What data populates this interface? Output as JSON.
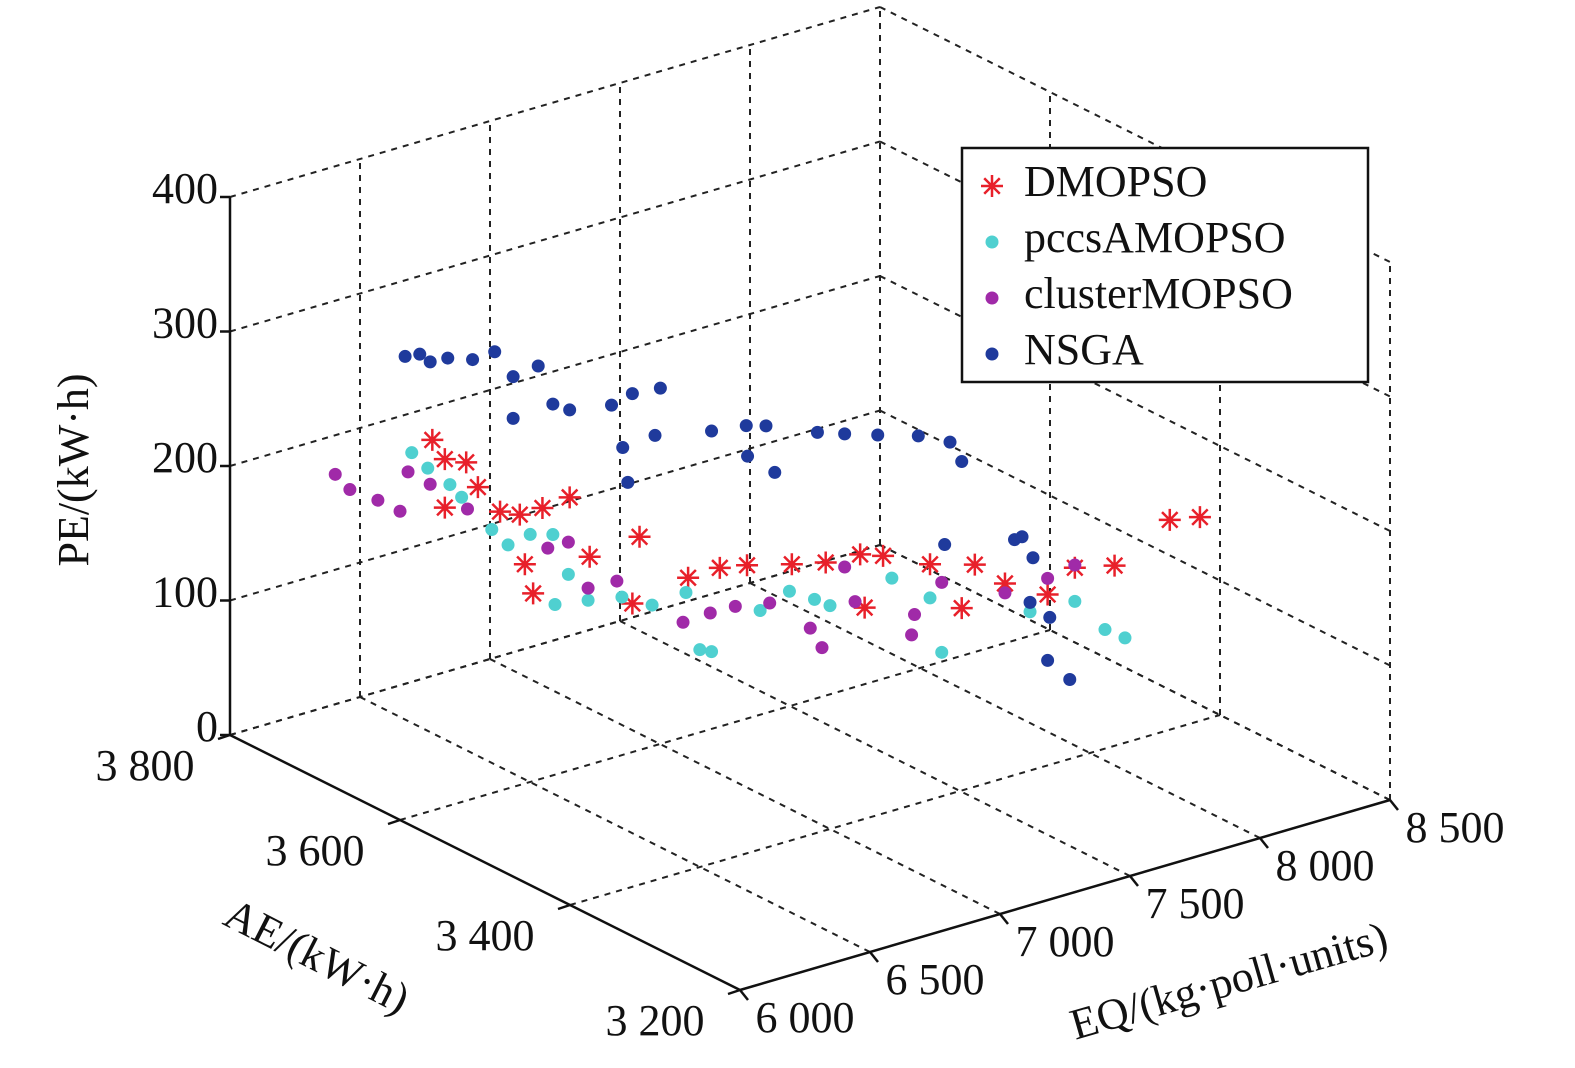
{
  "chart_data": {
    "type": "scatter3d",
    "xlabel": "EQ/(kg·poll·units)",
    "ylabel": "AE/(kW·h)",
    "zlabel": "PE/(kW·h)",
    "xlim": [
      6000,
      8500
    ],
    "ylim": [
      3200,
      3800
    ],
    "zlim": [
      0,
      400
    ],
    "xticks": [
      {
        "value": 6000,
        "label": "6 000"
      },
      {
        "value": 6500,
        "label": "6 500"
      },
      {
        "value": 7000,
        "label": "7 000"
      },
      {
        "value": 7500,
        "label": "7 500"
      },
      {
        "value": 8000,
        "label": "8 000"
      },
      {
        "value": 8500,
        "label": "8 500"
      }
    ],
    "yticks": [
      {
        "value": 3200,
        "label": "3 200"
      },
      {
        "value": 3400,
        "label": "3 400"
      },
      {
        "value": 3600,
        "label": "3 600"
      },
      {
        "value": 3800,
        "label": "3 800"
      }
    ],
    "zticks": [
      0,
      100,
      200,
      300,
      400
    ],
    "grid": true,
    "legend": "upper right",
    "series": [
      {
        "name": "DMOPSO",
        "color": "#e8202a",
        "marker": "star",
        "x": [
          6363,
          6398,
          6454,
          6398,
          6486,
          6545,
          6598,
          6659,
          6731,
          6611,
          6633,
          6785,
          6918,
          6897,
          7046,
          7132,
          7204,
          7324,
          7415,
          7505,
          7567,
          7692,
          7812,
          7778,
          7892,
          8007,
          8079,
          8186,
          8333,
          8413,
          7519
        ],
        "y": [
          3673,
          3669,
          3661,
          3669,
          3657,
          3649,
          3642,
          3634,
          3624,
          3640,
          3637,
          3617,
          3599,
          3601,
          3581,
          3570,
          3560,
          3544,
          3532,
          3519,
          3511,
          3494,
          3478,
          3483,
          3467,
          3452,
          3442,
          3428,
          3408,
          3397,
          3518
        ],
        "z": [
          239,
          224,
          221,
          188,
          202,
          183,
          180,
          184,
          191,
          143,
          121,
          146,
          159,
          110,
          127,
          133,
          134,
          133,
          133,
          138,
          136,
          128,
          126,
          94,
          111,
          101,
          120,
          120,
          152,
          153,
          98
        ]
      },
      {
        "name": "pccsAMOPSO",
        "color": "#4fd0d0",
        "marker": "dot",
        "x": [
          6310,
          6352,
          6411,
          6443,
          6523,
          6566,
          6625,
          6686,
          6726,
          6691,
          6779,
          6870,
          6950,
          7041,
          7078,
          7110,
          7238,
          7318,
          7385,
          7425,
          7591,
          7692,
          7724,
          7959,
          8079,
          8159,
          8213
        ],
        "y": [
          3681,
          3675,
          3667,
          3663,
          3652,
          3646,
          3638,
          3630,
          3624,
          3629,
          3617,
          3605,
          3594,
          3582,
          3577,
          3573,
          3555,
          3545,
          3536,
          3530,
          3508,
          3494,
          3490,
          3458,
          3442,
          3431,
          3424
        ],
        "z": [
          230,
          218,
          205,
          195,
          170,
          158,
          165,
          164,
          134,
          112,
          114,
          115,
          108,
          116,
          73,
          71,
          100,
          113,
          106,
          101,
          119,
          103,
          62,
          89,
          95,
          73,
          66
        ]
      },
      {
        "name": "clusterMOPSO",
        "color": "#a02aa8",
        "marker": "dot",
        "x": [
          6104,
          6144,
          6219,
          6278,
          6299,
          6358,
          6459,
          6673,
          6726,
          6779,
          6857,
          7033,
          7105,
          7172,
          7265,
          7372,
          7404,
          7465,
          7492,
          7644,
          7652,
          7724,
          7892,
          8007,
          8079
        ],
        "y": [
          3708,
          3703,
          3693,
          3685,
          3682,
          3674,
          3661,
          3632,
          3624,
          3617,
          3607,
          3583,
          3573,
          3564,
          3552,
          3537,
          3533,
          3525,
          3521,
          3501,
          3500,
          3490,
          3467,
          3452,
          3442
        ],
        "z": [
          217,
          205,
          196,
          187,
          216,
          206,
          186,
          154,
          158,
          123,
          127,
          94,
          100,
          104,
          105,
          85,
          70,
          129,
          103,
          76,
          91,
          114,
          104,
          113,
          122
        ]
      },
      {
        "name": "NSGA",
        "color": "#1f3a9c",
        "marker": "dot",
        "x": [
          6291,
          6331,
          6358,
          6406,
          6472,
          6531,
          6579,
          6646,
          6579,
          6686,
          6731,
          6843,
          6897,
          6972,
          6873,
          6886,
          6958,
          7110,
          7201,
          7254,
          7206,
          7278,
          7393,
          7465,
          7553,
          7660,
          7746,
          7778,
          7732,
          7919,
          7938,
          7967,
          7959,
          8012,
          8007,
          8066
        ],
        "y": [
          3683,
          3678,
          3674,
          3668,
          3659,
          3651,
          3644,
          3635,
          3644,
          3630,
          3624,
          3609,
          3601,
          3591,
          3605,
          3603,
          3593,
          3573,
          3560,
          3553,
          3560,
          3550,
          3535,
          3525,
          3513,
          3498,
          3487,
          3483,
          3489,
          3464,
          3461,
          3457,
          3458,
          3451,
          3452,
          3444
        ],
        "z": [
          302,
          303,
          297,
          299,
          297,
          302,
          283,
          290,
          252,
          261,
          256,
          258,
          266,
          269,
          226,
          200,
          234,
          235,
          238,
          237,
          215,
          202,
          230,
          228,
          226,
          224,
          218,
          203,
          142,
          143,
          145,
          129,
          96,
          84,
          52,
          37
        ]
      }
    ]
  }
}
